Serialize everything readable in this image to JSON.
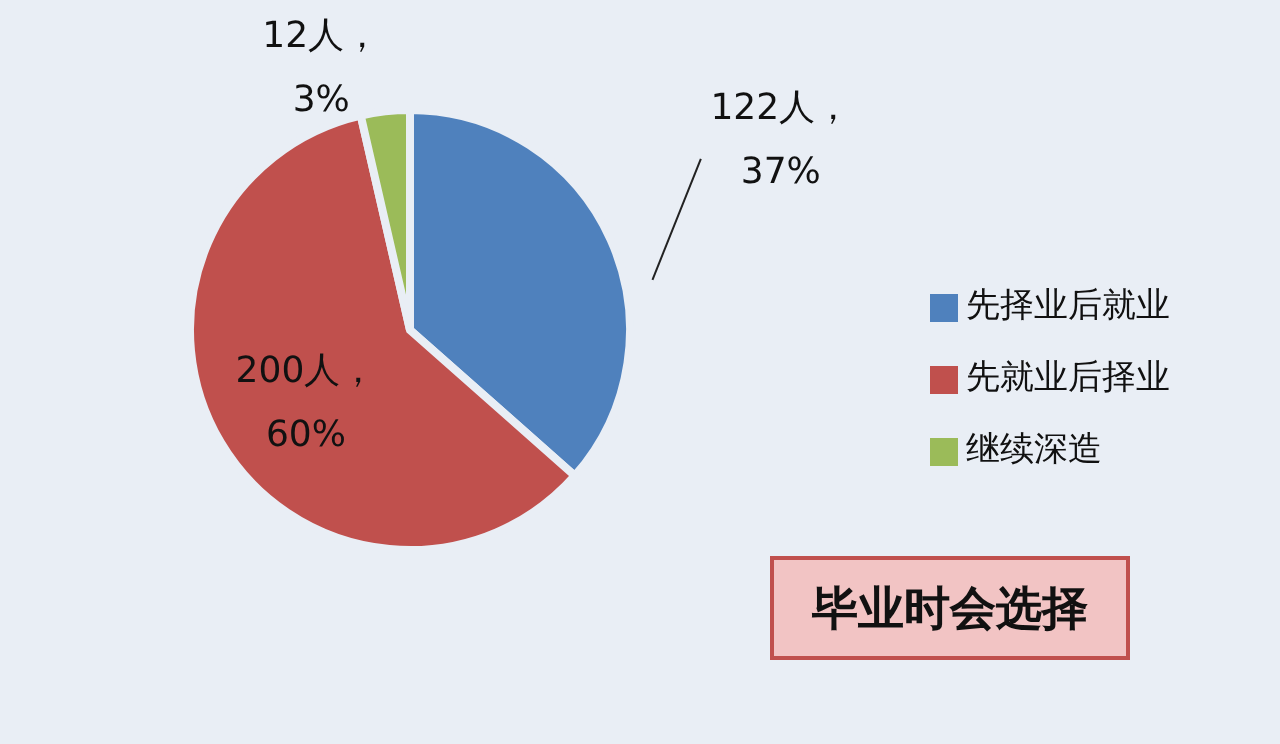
{
  "chart_data": {
    "type": "pie",
    "title": "毕业时会选择",
    "categories": [
      "先择业后就业",
      "先就业后择业",
      "继续深造"
    ],
    "values": [
      122,
      200,
      12
    ],
    "colors": [
      "#4f81bd",
      "#c0504d",
      "#9bbb59"
    ],
    "value_labels": [
      "122人，\n37%",
      "200人，\n60%",
      "12人，\n3%"
    ],
    "legend": "right"
  }
}
